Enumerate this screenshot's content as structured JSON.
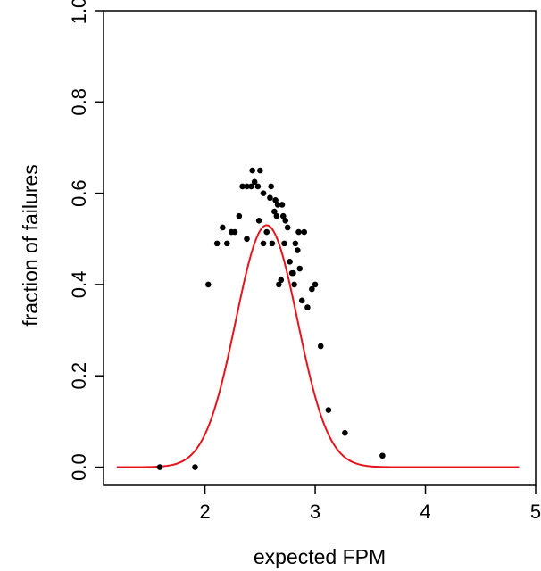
{
  "chart_data": {
    "type": "scatter",
    "title": "",
    "xlabel": "expected FPM",
    "ylabel": "fraction of failures",
    "xlim": [
      1.08,
      5.0
    ],
    "ylim": [
      -0.04,
      1.0
    ],
    "x_ticks": [
      2,
      3,
      4,
      5
    ],
    "x_tick_labels": [
      "2",
      "3",
      "4",
      "5"
    ],
    "y_ticks": [
      0.0,
      0.2,
      0.4,
      0.6,
      0.8,
      1.0
    ],
    "y_tick_labels": [
      "0.0",
      "0.2",
      "0.4",
      "0.6",
      "0.8",
      "1.0"
    ],
    "grid": false,
    "series": [
      {
        "kind": "points",
        "color": "#000000",
        "points": [
          [
            1.59,
            0.0
          ],
          [
            1.91,
            0.0
          ],
          [
            2.03,
            0.4
          ],
          [
            2.11,
            0.49
          ],
          [
            2.16,
            0.525
          ],
          [
            2.2,
            0.49
          ],
          [
            2.24,
            0.515
          ],
          [
            2.27,
            0.515
          ],
          [
            2.31,
            0.55
          ],
          [
            2.34,
            0.615
          ],
          [
            2.38,
            0.5
          ],
          [
            2.38,
            0.615
          ],
          [
            2.42,
            0.615
          ],
          [
            2.43,
            0.65
          ],
          [
            2.45,
            0.625
          ],
          [
            2.48,
            0.615
          ],
          [
            2.5,
            0.65
          ],
          [
            2.49,
            0.54
          ],
          [
            2.53,
            0.49
          ],
          [
            2.53,
            0.6
          ],
          [
            2.56,
            0.515
          ],
          [
            2.59,
            0.59
          ],
          [
            2.6,
            0.615
          ],
          [
            2.61,
            0.49
          ],
          [
            2.63,
            0.56
          ],
          [
            2.64,
            0.585
          ],
          [
            2.65,
            0.55
          ],
          [
            2.66,
            0.575
          ],
          [
            2.67,
            0.4
          ],
          [
            2.69,
            0.41
          ],
          [
            2.7,
            0.575
          ],
          [
            2.71,
            0.55
          ],
          [
            2.72,
            0.49
          ],
          [
            2.73,
            0.54
          ],
          [
            2.75,
            0.525
          ],
          [
            2.77,
            0.45
          ],
          [
            2.79,
            0.425
          ],
          [
            2.8,
            0.425
          ],
          [
            2.81,
            0.4
          ],
          [
            2.82,
            0.49
          ],
          [
            2.84,
            0.475
          ],
          [
            2.85,
            0.515
          ],
          [
            2.86,
            0.435
          ],
          [
            2.88,
            0.365
          ],
          [
            2.9,
            0.515
          ],
          [
            2.93,
            0.35
          ],
          [
            2.97,
            0.39
          ],
          [
            3.0,
            0.4
          ],
          [
            3.05,
            0.265
          ],
          [
            3.12,
            0.125
          ],
          [
            3.27,
            0.075
          ],
          [
            3.61,
            0.025
          ]
        ]
      },
      {
        "kind": "line",
        "color": "#e8141c",
        "model": "gaussian",
        "amplitude": 0.53,
        "mean": 2.56,
        "sd": 0.28,
        "x_range": [
          1.2,
          4.85
        ]
      }
    ]
  }
}
